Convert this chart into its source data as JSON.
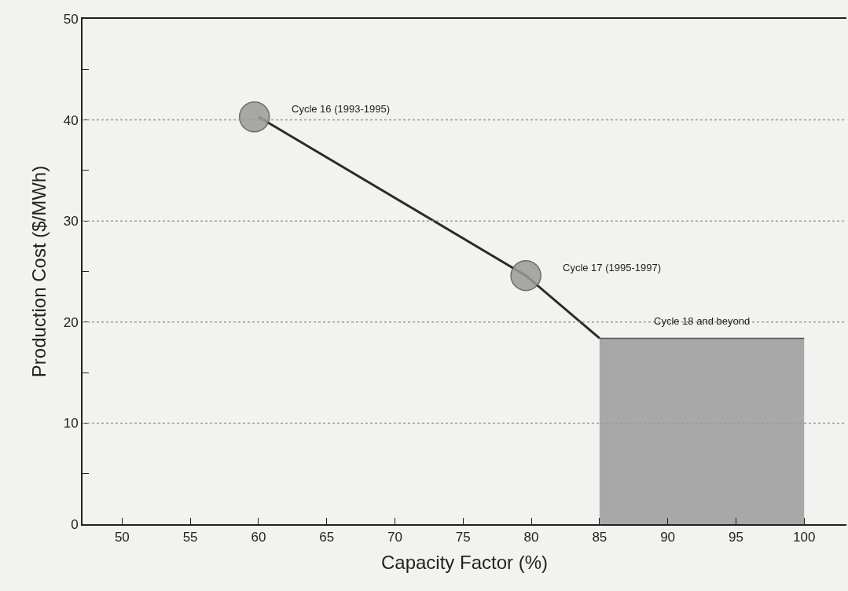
{
  "chart_data": {
    "type": "line",
    "xlabel": "Capacity Factor (%)",
    "ylabel": "Production Cost ($/MWh)",
    "series": [
      {
        "type": "area",
        "color": "#a8a8a8",
        "x": [
          85,
          100
        ],
        "values": [
          18.4,
          18.4
        ]
      },
      {
        "type": "line",
        "color": "#2a2a2a",
        "x": [
          60,
          79.6,
          85
        ],
        "values": [
          40.3,
          24.6,
          18.4
        ]
      },
      {
        "type": "scatter",
        "color": "#9a9a9a",
        "marker": "circle",
        "x": [
          59.7,
          79.6
        ],
        "values": [
          40.3,
          24.6
        ]
      }
    ],
    "annotations": [
      "Cycle 16 (1993-1995)",
      "Cycle 17 (1995-1997)",
      "Cycle 18 and beyond"
    ],
    "xlim": [
      47.1,
      103.1
    ],
    "ylim": [
      0,
      50
    ],
    "xticks": [
      50,
      55,
      60,
      65,
      70,
      75,
      80,
      85,
      90,
      95,
      100
    ],
    "yticks": [
      0,
      {
        "value": 5,
        "label": null
      },
      10,
      {
        "value": 15,
        "label": null
      },
      20,
      {
        "value": 25,
        "label": null
      },
      30,
      {
        "value": 35,
        "label": null
      },
      40,
      {
        "value": 45,
        "label": null
      },
      50
    ],
    "grid": "y"
  }
}
